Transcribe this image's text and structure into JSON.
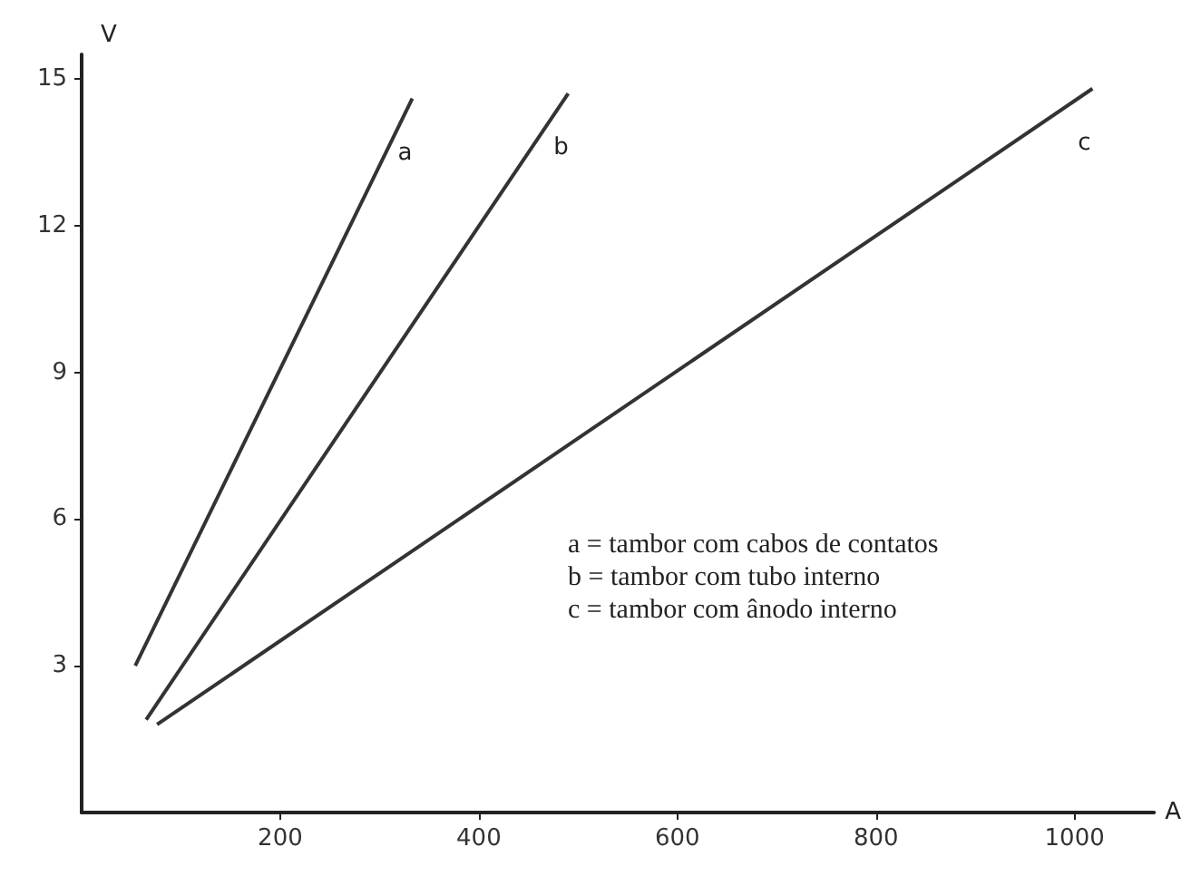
{
  "chart_data": {
    "type": "line",
    "xlabel": "A",
    "ylabel": "V",
    "xlim": [
      0,
      1080
    ],
    "ylim": [
      0,
      15.5
    ],
    "xticks": [
      200,
      400,
      600,
      800,
      1000
    ],
    "yticks": [
      3,
      6,
      9,
      12,
      15
    ],
    "grid": false,
    "legend": false,
    "marker": "none",
    "line_style": "solid",
    "series": [
      {
        "name": "a",
        "color": "#333333",
        "x": [
          54,
          333
        ],
        "values": [
          3.0,
          14.6
        ]
      },
      {
        "name": "b",
        "color": "#333333",
        "x": [
          65,
          490
        ],
        "values": [
          1.9,
          14.7
        ]
      },
      {
        "name": "c",
        "color": "#333333",
        "x": [
          76,
          1018
        ],
        "values": [
          1.8,
          14.8
        ]
      }
    ],
    "annotations": [
      "a = tambor com cabos de contatos",
      "b = tambor com tubo interno",
      "c = tambor com ânodo interno"
    ]
  }
}
